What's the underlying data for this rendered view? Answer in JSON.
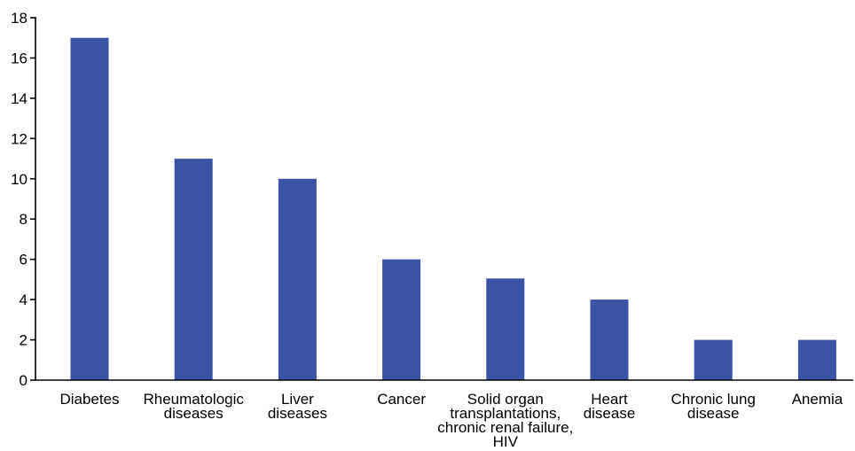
{
  "chart_data": {
    "type": "bar",
    "categories": [
      [
        "Diabetes"
      ],
      [
        "Rheumatologic",
        "diseases"
      ],
      [
        "Liver",
        "diseases"
      ],
      [
        "Cancer"
      ],
      [
        "Solid organ",
        "transplantations,",
        "chronic renal failure,",
        "HIV"
      ],
      [
        "Heart",
        "disease"
      ],
      [
        "Chronic lung",
        "disease"
      ],
      [
        "Anemia"
      ]
    ],
    "values": [
      17,
      11,
      10,
      6,
      5.05,
      4,
      2,
      2
    ],
    "ylim": [
      0,
      18
    ],
    "yticks": [
      0,
      2,
      4,
      6,
      8,
      10,
      12,
      14,
      16,
      18
    ],
    "title": "",
    "xlabel": "",
    "ylabel": "",
    "grid": false,
    "bar_color": "#3a53a4"
  }
}
